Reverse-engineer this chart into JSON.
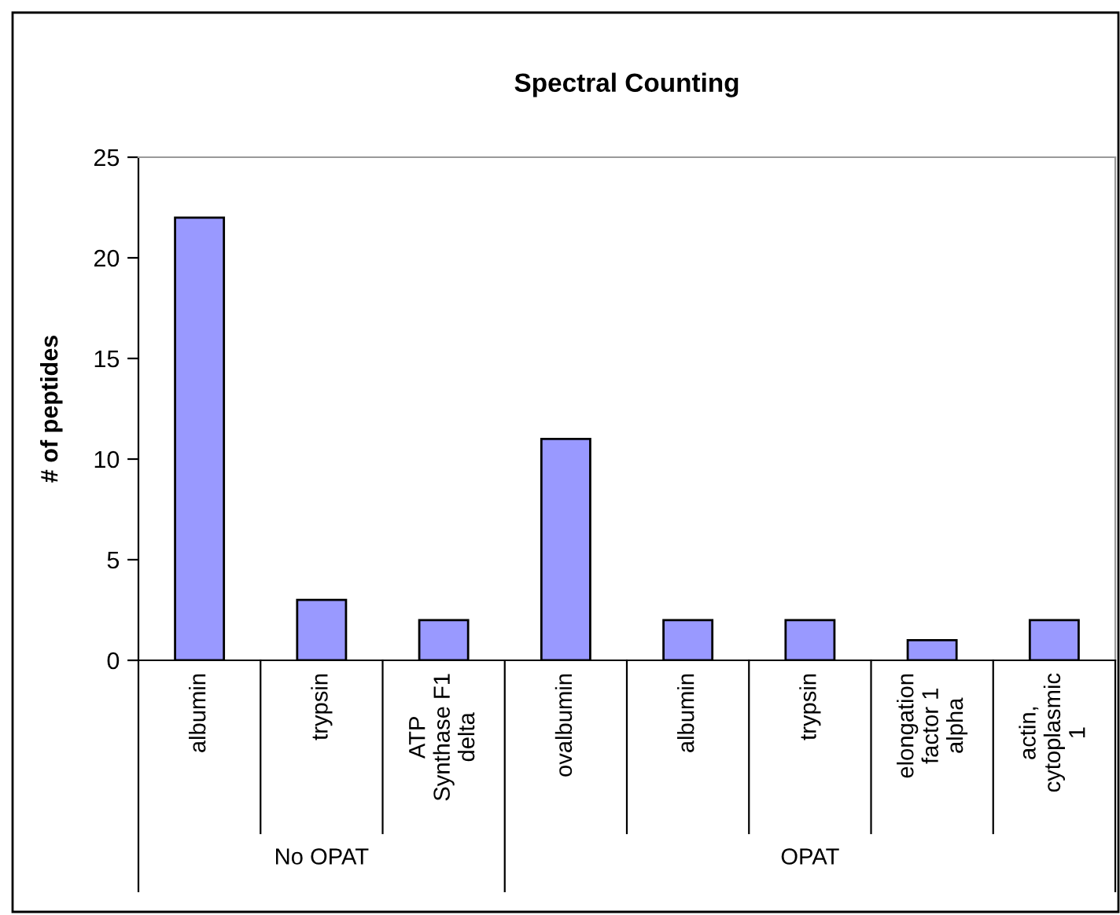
{
  "chart_data": {
    "type": "bar",
    "title": "Spectral Counting",
    "ylabel": "# of peptides",
    "categories": [
      "albumin",
      "trypsin",
      "ATP\nSynthase F1\ndelta",
      "ovalbumin",
      "albumin",
      "trypsin",
      "elongation\nfactor 1\nalpha",
      "actin,\ncytoplasmic\n1"
    ],
    "values": [
      22,
      3,
      2,
      11,
      2,
      2,
      1,
      2
    ],
    "color": "#9999ff",
    "ylim": [
      0,
      25
    ],
    "yticks": [
      0,
      5,
      10,
      15,
      20,
      25
    ],
    "grid": false,
    "legend": false,
    "annotations": [
      "No OPAT",
      "OPAT"
    ]
  }
}
